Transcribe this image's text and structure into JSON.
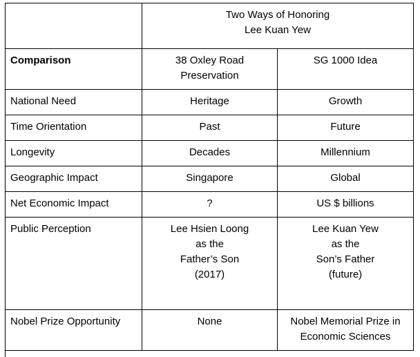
{
  "table": {
    "title": "Two Ways of Honoring\nLee Kuan Yew",
    "header": {
      "label": "Comparison",
      "col1": "38 Oxley Road\nPreservation",
      "col2": "SG 1000 Idea"
    },
    "rows": [
      {
        "label": "National Need",
        "col1": "Heritage",
        "col2": "Growth"
      },
      {
        "label": "Time Orientation",
        "col1": "Past",
        "col2": "Future"
      },
      {
        "label": "Longevity",
        "col1": "Decades",
        "col2": "Millennium"
      },
      {
        "label": "Geographic Impact",
        "col1": "Singapore",
        "col2": "Global"
      },
      {
        "label": "Net Economic Impact",
        "col1": "?",
        "col2": "US $ billions"
      },
      {
        "label": "Public Perception",
        "col1": "Lee Hsien Loong\nas the\nFather’s Son\n(2017)",
        "col2": "Lee Kuan Yew\nas the\nSon’s Father\n(future)"
      },
      {
        "label": "Nobel Prize Opportunity",
        "col1": "None",
        "col2": "Nobel Memorial Prize in\nEconomic Sciences"
      }
    ]
  }
}
